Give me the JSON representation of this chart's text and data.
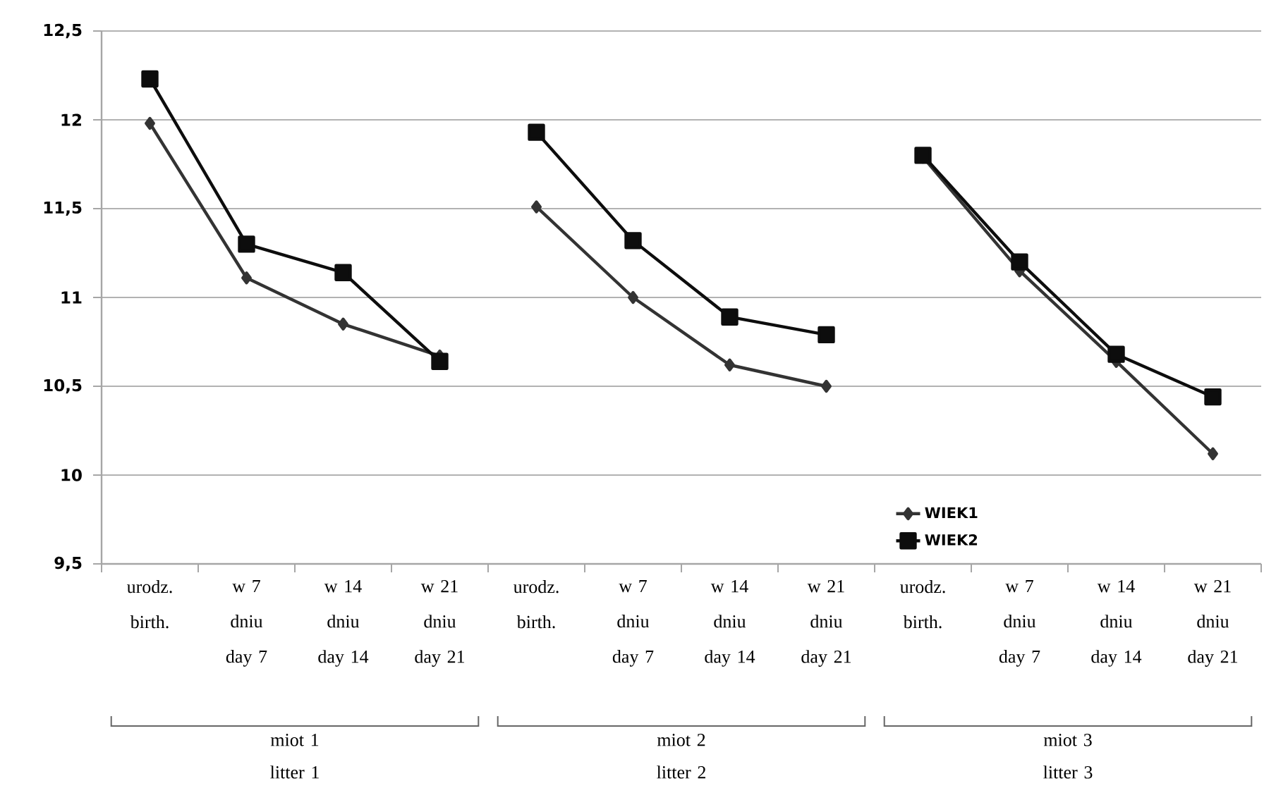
{
  "chart_data": {
    "type": "line",
    "categories": [
      "urodz. birth.",
      "w 7 dniu day 7",
      "w 14 dniu day 14",
      "w 21 dniu day 21",
      "urodz. birth.",
      "w 7 dniu day 7",
      "w 14 dniu day 14",
      "w 21 dniu day 21",
      "urodz. birth.",
      "w 7 dniu day 7",
      "w 14 dniu day 14",
      "w 21 dniu day 21"
    ],
    "series": [
      {
        "name": "WIEK1",
        "color": "#333333",
        "marker": "diamond",
        "values": [
          11.98,
          11.11,
          10.85,
          10.67,
          11.51,
          11.0,
          10.62,
          10.5,
          11.79,
          11.15,
          10.64,
          10.12
        ]
      },
      {
        "name": "WIEK2",
        "color": "#0d0d0d",
        "marker": "square",
        "values": [
          12.23,
          11.3,
          11.14,
          10.64,
          11.93,
          11.32,
          10.89,
          10.79,
          11.8,
          11.2,
          10.68,
          10.44
        ]
      }
    ],
    "ylim": [
      9.5,
      12.5
    ],
    "yticks": [
      {
        "value": 9.5,
        "label": "9,5"
      },
      10,
      {
        "value": 10.5,
        "label": "10,5"
      },
      11,
      {
        "value": 11.5,
        "label": "11,5"
      },
      12,
      {
        "value": 12.5,
        "label": "12,5"
      }
    ],
    "grid": "y",
    "legend": "bottom right",
    "line_style": "solid",
    "annotations": [
      "miot 1 litter 1",
      "miot 2 litter 2",
      "miot 3 litter 3"
    ]
  }
}
